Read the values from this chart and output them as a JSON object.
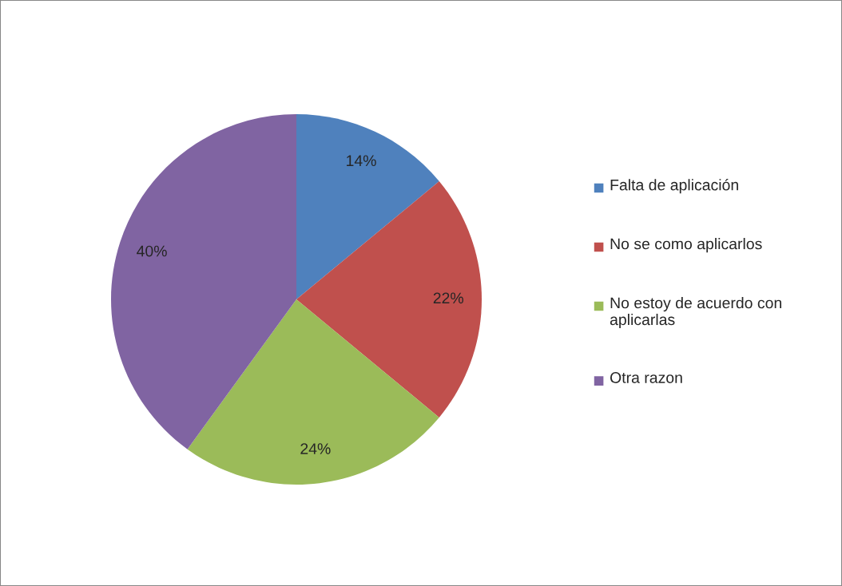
{
  "chart_data": {
    "type": "pie",
    "categories": [
      "Falta de aplicación",
      "No se como aplicarlos",
      "No estoy de acuerdo con aplicarlas",
      "Otra razon"
    ],
    "values": [
      14,
      22,
      24,
      40
    ],
    "colors": [
      "#4f81bd",
      "#c0504d",
      "#9bbb59",
      "#8064a2"
    ],
    "value_labels": [
      "14%",
      "22%",
      "24%",
      "40%"
    ],
    "legend": "right"
  }
}
